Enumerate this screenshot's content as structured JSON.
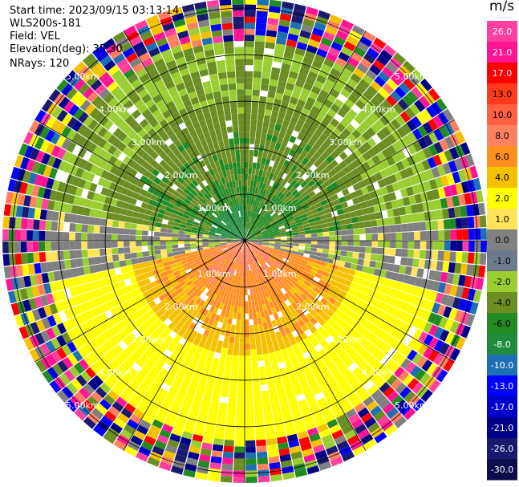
{
  "meta": {
    "start_time": "Start time: 2023/09/15 03:13:14",
    "instrument": "WLS200s-181",
    "field": "Field: VEL",
    "elevation": "Elevation(deg): 35.30",
    "nrays": "NRays: 120"
  },
  "colorbar": {
    "unit": "m/s",
    "ticks": [
      "26.0",
      "21.0",
      "17.0",
      "13.0",
      "10.0",
      "8.0",
      "6.0",
      "4.0",
      "2.0",
      "1.0",
      "0.0",
      "-1.0",
      "-2.0",
      "-4.0",
      "-6.0",
      "-8.0",
      "-10.0",
      "-13.0",
      "-17.0",
      "-21.0",
      "-26.0",
      "-30.0"
    ],
    "colors": [
      "#ff3fa0",
      "#ff1493",
      "#ff0000",
      "#ff3a1a",
      "#ff6040",
      "#ff8060",
      "#ff9020",
      "#f4c000",
      "#ffff00",
      "#ffe45a",
      "#808080",
      "#6b7b8c",
      "#9acd32",
      "#6b8e23",
      "#228b22",
      "#1e8c3c",
      "#1e6fb4",
      "#0000ff",
      "#0000cd",
      "#00008b",
      "#191970",
      "#0d0d4d"
    ]
  },
  "chart_data": {
    "type": "ppi",
    "title": "",
    "field": "VEL",
    "units": "m/s",
    "nrays": 120,
    "elevation_deg": 35.3,
    "range_rings_km": [
      1.0,
      2.0,
      3.0,
      4.0,
      5.0
    ],
    "ring_labels": [
      "1.00km",
      "2.00km",
      "3.00km",
      "4.00km",
      "5.00km"
    ],
    "max_range_km": 5.0,
    "velocity_range": [
      -30.0,
      26.0
    ],
    "regions": [
      {
        "sector": "north/northwest near field",
        "velocity": -6.0
      },
      {
        "sector": "south/southeast near field",
        "velocity": 8.0
      },
      {
        "sector": "south mid range",
        "velocity": 4.0
      },
      {
        "sector": "south far range",
        "velocity": 2.0
      },
      {
        "sector": "outer ring (noise)",
        "velocity": "mixed"
      }
    ]
  }
}
